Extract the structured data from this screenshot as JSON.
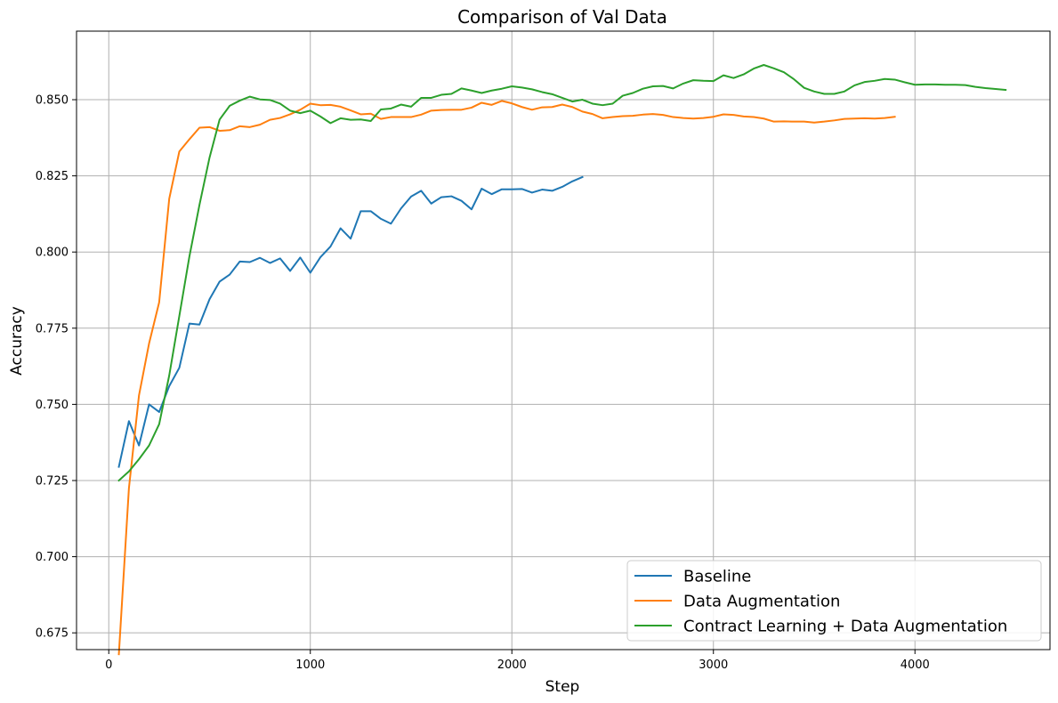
{
  "chart_data": {
    "type": "line",
    "title": "Comparison of Val Data",
    "xlabel": "Step",
    "ylabel": "Accuracy",
    "xlim": [
      -160,
      4670
    ],
    "ylim": [
      0.6695,
      0.8725
    ],
    "xticks": [
      0,
      1000,
      2000,
      3000,
      4000
    ],
    "yticks": [
      0.675,
      0.7,
      0.725,
      0.75,
      0.775,
      0.8,
      0.825,
      0.85
    ],
    "xtick_labels": [
      "0",
      "1000",
      "2000",
      "3000",
      "4000"
    ],
    "ytick_labels": [
      "0.675",
      "0.700",
      "0.725",
      "0.750",
      "0.775",
      "0.800",
      "0.825",
      "0.850"
    ],
    "grid": true,
    "legend_position": "bottom-right",
    "series": [
      {
        "name": "Baseline",
        "color": "#1f77b4",
        "x": [
          50,
          100,
          150,
          200,
          250,
          300,
          350,
          400,
          450,
          500,
          550,
          600,
          650,
          700,
          750,
          800,
          850,
          900,
          950,
          1000,
          1050,
          1100,
          1150,
          1200,
          1250,
          1300,
          1350,
          1400,
          1450,
          1500,
          1550,
          1600,
          1650,
          1700,
          1750,
          1800,
          1850,
          1900,
          1950,
          2000,
          2050,
          2100,
          2150,
          2200,
          2250,
          2300,
          2350
        ],
        "y": [
          0.7295,
          0.7445,
          0.7365,
          0.75,
          0.7475,
          0.756,
          0.762,
          0.7765,
          0.7762,
          0.7845,
          0.7903,
          0.7926,
          0.7969,
          0.7967,
          0.7981,
          0.7964,
          0.7979,
          0.7938,
          0.7982,
          0.7932,
          0.7983,
          0.8018,
          0.8078,
          0.8044,
          0.8134,
          0.8134,
          0.8109,
          0.8093,
          0.8143,
          0.8182,
          0.8201,
          0.8159,
          0.818,
          0.8183,
          0.8168,
          0.814,
          0.8208,
          0.819,
          0.8206,
          0.8206,
          0.8207,
          0.8195,
          0.8205,
          0.8201,
          0.8214,
          0.8232,
          0.8246
        ]
      },
      {
        "name": "Data Augmentation",
        "color": "#ff7f0e",
        "x": [
          50,
          100,
          150,
          200,
          250,
          300,
          350,
          400,
          450,
          500,
          550,
          600,
          650,
          700,
          750,
          800,
          850,
          900,
          950,
          1000,
          1050,
          1100,
          1150,
          1200,
          1250,
          1300,
          1350,
          1400,
          1450,
          1500,
          1550,
          1600,
          1650,
          1700,
          1750,
          1800,
          1850,
          1900,
          1950,
          2000,
          2050,
          2100,
          2150,
          2200,
          2250,
          2300,
          2350,
          2400,
          2450,
          2500,
          2550,
          2600,
          2650,
          2700,
          2750,
          2800,
          2850,
          2900,
          2950,
          3000,
          3050,
          3100,
          3150,
          3200,
          3250,
          3300,
          3350,
          3400,
          3450,
          3500,
          3550,
          3600,
          3650,
          3700,
          3750,
          3800,
          3850,
          3900
        ],
        "y": [
          0.668,
          0.7225,
          0.753,
          0.77,
          0.7835,
          0.8175,
          0.833,
          0.837,
          0.8408,
          0.841,
          0.8398,
          0.84,
          0.8413,
          0.841,
          0.8418,
          0.8434,
          0.844,
          0.8452,
          0.8467,
          0.8487,
          0.8482,
          0.8483,
          0.8477,
          0.8465,
          0.8452,
          0.8454,
          0.8437,
          0.8443,
          0.8443,
          0.8443,
          0.8451,
          0.8464,
          0.8466,
          0.8467,
          0.8467,
          0.8474,
          0.849,
          0.8483,
          0.8496,
          0.8488,
          0.8476,
          0.8467,
          0.8475,
          0.8476,
          0.8484,
          0.8476,
          0.8461,
          0.8453,
          0.8439,
          0.8443,
          0.8446,
          0.8447,
          0.8451,
          0.8453,
          0.845,
          0.8443,
          0.844,
          0.8438,
          0.844,
          0.8444,
          0.8452,
          0.845,
          0.8445,
          0.8443,
          0.8438,
          0.8428,
          0.8429,
          0.8428,
          0.8428,
          0.8425,
          0.8428,
          0.8432,
          0.8437,
          0.8438,
          0.8439,
          0.8438,
          0.844,
          0.8444
        ]
      },
      {
        "name": "Contract Learning + Data Augmentation",
        "color": "#2ca02c",
        "x": [
          50,
          100,
          150,
          200,
          250,
          300,
          350,
          400,
          450,
          500,
          550,
          600,
          650,
          700,
          750,
          800,
          850,
          900,
          950,
          1000,
          1050,
          1100,
          1150,
          1200,
          1250,
          1300,
          1350,
          1400,
          1450,
          1500,
          1550,
          1600,
          1650,
          1700,
          1750,
          1800,
          1850,
          1900,
          1950,
          2000,
          2050,
          2100,
          2150,
          2200,
          2250,
          2300,
          2350,
          2400,
          2450,
          2500,
          2550,
          2600,
          2650,
          2700,
          2750,
          2800,
          2850,
          2900,
          2950,
          3000,
          3050,
          3100,
          3150,
          3200,
          3250,
          3300,
          3350,
          3400,
          3450,
          3500,
          3550,
          3600,
          3650,
          3700,
          3750,
          3800,
          3850,
          3900,
          3950,
          4000,
          4050,
          4100,
          4150,
          4200,
          4250,
          4300,
          4350,
          4400,
          4450
        ],
        "y": [
          0.725,
          0.728,
          0.732,
          0.7365,
          0.7435,
          0.7595,
          0.779,
          0.7985,
          0.8155,
          0.831,
          0.8435,
          0.848,
          0.8497,
          0.851,
          0.8501,
          0.8499,
          0.8487,
          0.8464,
          0.8456,
          0.8464,
          0.8445,
          0.8423,
          0.8439,
          0.8434,
          0.8435,
          0.843,
          0.8468,
          0.8471,
          0.8484,
          0.8477,
          0.8506,
          0.8506,
          0.8516,
          0.8519,
          0.8537,
          0.853,
          0.8522,
          0.853,
          0.8536,
          0.8544,
          0.854,
          0.8534,
          0.8525,
          0.8518,
          0.8506,
          0.8494,
          0.85,
          0.8487,
          0.8482,
          0.8487,
          0.8513,
          0.8522,
          0.8536,
          0.8544,
          0.8545,
          0.8537,
          0.8553,
          0.8564,
          0.8562,
          0.8561,
          0.858,
          0.8571,
          0.8583,
          0.8602,
          0.8614,
          0.8603,
          0.859,
          0.8567,
          0.8539,
          0.8527,
          0.8519,
          0.8519,
          0.8527,
          0.8547,
          0.8558,
          0.8562,
          0.8568,
          0.8566,
          0.8557,
          0.8549,
          0.855,
          0.855,
          0.8549,
          0.8549,
          0.8548,
          0.8542,
          0.8538,
          0.8535,
          0.8532
        ]
      }
    ]
  }
}
